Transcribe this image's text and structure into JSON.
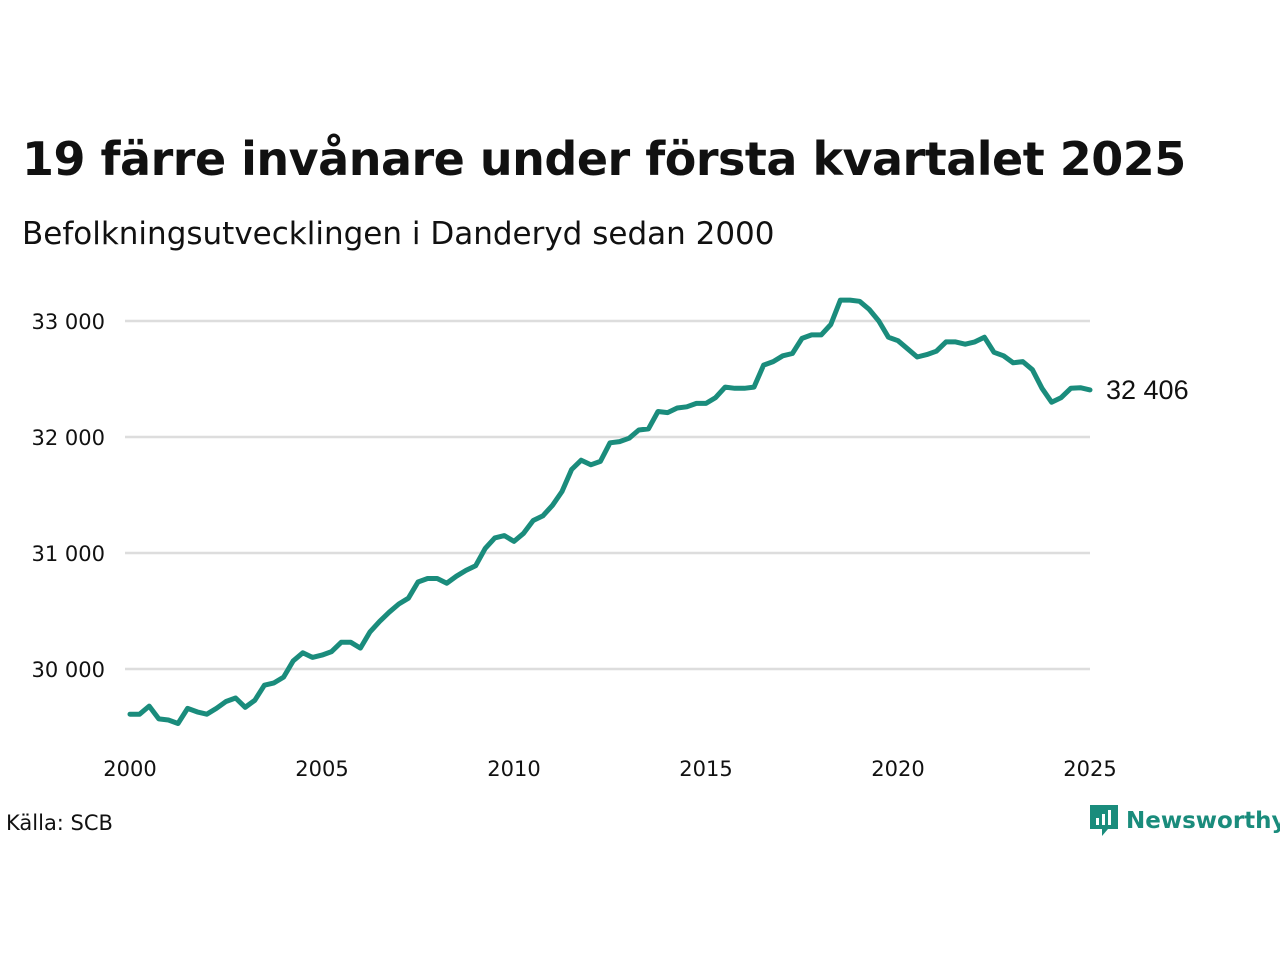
{
  "colors": {
    "line": "#1a8c7c",
    "grid": "#dddddd",
    "text": "#111111",
    "brand": "#1a8c7c"
  },
  "source": "Källa: SCB",
  "logo": {
    "text": "Newsworthy",
    "icon": "newsworthy-logo-icon"
  },
  "chart_data": {
    "type": "line",
    "title": "19 färre invånare under första kvartalet 2025",
    "subtitle": "Befolkningsutvecklingen i Danderyd sedan 2000",
    "xlabel": "",
    "ylabel": "",
    "xlim": [
      2000,
      2025.75
    ],
    "ylim": [
      29400,
      33250
    ],
    "x_ticks": [
      2000,
      2005,
      2010,
      2015,
      2020,
      2025
    ],
    "x_tick_labels": [
      "2000",
      "2005",
      "2010",
      "2015",
      "2020",
      "2025"
    ],
    "y_ticks": [
      30000,
      31000,
      32000,
      33000
    ],
    "y_tick_labels": [
      "30 000",
      "31 000",
      "32 000",
      "33 000"
    ],
    "grid": "horizontal",
    "end_label": "32 406",
    "series": [
      {
        "x": [
          2000.0,
          2000.25,
          2000.5,
          2000.75,
          2001.0,
          2001.25,
          2001.5,
          2001.75,
          2002.0,
          2002.25,
          2002.5,
          2002.75,
          2003.0,
          2003.25,
          2003.5,
          2003.75,
          2004.0,
          2004.25,
          2004.5,
          2004.75,
          2005.0,
          2005.25,
          2005.5,
          2005.75,
          2006.0,
          2006.25,
          2006.5,
          2006.75,
          2007.0,
          2007.25,
          2007.5,
          2007.75,
          2008.0,
          2008.25,
          2008.5,
          2008.75,
          2009.0,
          2009.25,
          2009.5,
          2009.75,
          2010.0,
          2010.25,
          2010.5,
          2010.75,
          2011.0,
          2011.25,
          2011.5,
          2011.75,
          2012.0,
          2012.25,
          2012.5,
          2012.75,
          2013.0,
          2013.25,
          2013.5,
          2013.75,
          2014.0,
          2014.25,
          2014.5,
          2014.75,
          2015.0,
          2015.25,
          2015.5,
          2015.75,
          2016.0,
          2016.25,
          2016.5,
          2016.75,
          2017.0,
          2017.25,
          2017.5,
          2017.75,
          2018.0,
          2018.25,
          2018.5,
          2018.75,
          2019.0,
          2019.25,
          2019.5,
          2019.75,
          2020.0,
          2020.25,
          2020.5,
          2020.75,
          2021.0,
          2021.25,
          2021.5,
          2021.75,
          2022.0,
          2022.25,
          2022.5,
          2022.75,
          2023.0,
          2023.25,
          2023.5,
          2023.75,
          2024.0,
          2024.25,
          2024.5,
          2024.75,
          2025.0
        ],
        "y": [
          29610,
          29610,
          29680,
          29570,
          29560,
          29530,
          29660,
          29630,
          29610,
          29660,
          29720,
          29750,
          29670,
          29730,
          29860,
          29880,
          29930,
          30070,
          30140,
          30100,
          30120,
          30150,
          30230,
          30230,
          30180,
          30320,
          30410,
          30490,
          30560,
          30610,
          30750,
          30780,
          30780,
          30740,
          30800,
          30850,
          30890,
          31040,
          31130,
          31150,
          31100,
          31170,
          31280,
          31320,
          31410,
          31530,
          31720,
          31800,
          31760,
          31790,
          31950,
          31960,
          31990,
          32060,
          32070,
          32220,
          32210,
          32250,
          32260,
          32290,
          32290,
          32340,
          32430,
          32420,
          32420,
          32430,
          32620,
          32650,
          32700,
          32720,
          32850,
          32880,
          32880,
          32970,
          33180,
          33180,
          33170,
          33100,
          33000,
          32860,
          32830,
          32760,
          32690,
          32710,
          32740,
          32820,
          32820,
          32800,
          32820,
          32860,
          32730,
          32700,
          32640,
          32650,
          32580,
          32420,
          32300,
          32340,
          32420,
          32425,
          32406
        ]
      }
    ]
  }
}
